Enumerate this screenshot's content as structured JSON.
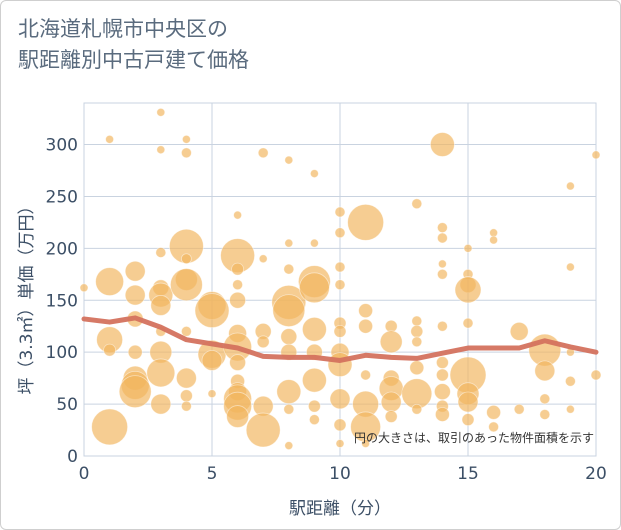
{
  "chart_data": {
    "type": "scatter",
    "title_line1": "北海道札幌市中央区の",
    "title_line2": "駅距離別中古戸建て価格",
    "xlabel": "駅距離（分）",
    "ylabel": "坪（3.3㎡）単価（万円）",
    "xlim": [
      0,
      20
    ],
    "ylim": [
      0,
      340
    ],
    "xticks": [
      0,
      5,
      10,
      15,
      20
    ],
    "yticks": [
      0,
      50,
      100,
      150,
      200,
      250,
      300
    ],
    "grid": true,
    "note": "円の大きさは、取引のあった物件面積を示す",
    "colors": {
      "bubble": "#f2b65e",
      "line": "#d4725e",
      "grid": "#c9d3e0"
    },
    "trend": {
      "x": [
        0,
        1,
        2,
        3,
        4,
        5,
        6,
        7,
        8,
        9,
        10,
        11,
        12,
        13,
        14,
        15,
        16,
        17,
        18,
        19,
        20
      ],
      "y": [
        132,
        129,
        133,
        124,
        112,
        108,
        104,
        96,
        95,
        95,
        92,
        97,
        95,
        94,
        99,
        104,
        104,
        104,
        111,
        105,
        100
      ]
    },
    "points": [
      {
        "x": 0,
        "y": 162,
        "s": 4
      },
      {
        "x": 1,
        "y": 305,
        "s": 4
      },
      {
        "x": 1,
        "y": 168,
        "s": 14
      },
      {
        "x": 1,
        "y": 112,
        "s": 13
      },
      {
        "x": 1,
        "y": 102,
        "s": 6
      },
      {
        "x": 1,
        "y": 28,
        "s": 18
      },
      {
        "x": 2,
        "y": 178,
        "s": 10
      },
      {
        "x": 2,
        "y": 155,
        "s": 10
      },
      {
        "x": 2,
        "y": 132,
        "s": 8
      },
      {
        "x": 2,
        "y": 100,
        "s": 7
      },
      {
        "x": 2,
        "y": 75,
        "s": 12
      },
      {
        "x": 2,
        "y": 68,
        "s": 14
      },
      {
        "x": 2,
        "y": 62,
        "s": 16
      },
      {
        "x": 3,
        "y": 331,
        "s": 4
      },
      {
        "x": 3,
        "y": 295,
        "s": 4
      },
      {
        "x": 3,
        "y": 196,
        "s": 5
      },
      {
        "x": 3,
        "y": 162,
        "s": 8
      },
      {
        "x": 3,
        "y": 155,
        "s": 12
      },
      {
        "x": 3,
        "y": 145,
        "s": 10
      },
      {
        "x": 3,
        "y": 120,
        "s": 5
      },
      {
        "x": 3,
        "y": 100,
        "s": 11
      },
      {
        "x": 3,
        "y": 80,
        "s": 14
      },
      {
        "x": 3,
        "y": 50,
        "s": 10
      },
      {
        "x": 4,
        "y": 305,
        "s": 4
      },
      {
        "x": 4,
        "y": 292,
        "s": 5
      },
      {
        "x": 4,
        "y": 202,
        "s": 17
      },
      {
        "x": 4,
        "y": 190,
        "s": 5
      },
      {
        "x": 4,
        "y": 170,
        "s": 11
      },
      {
        "x": 4,
        "y": 165,
        "s": 16
      },
      {
        "x": 4,
        "y": 120,
        "s": 5
      },
      {
        "x": 4,
        "y": 75,
        "s": 10
      },
      {
        "x": 4,
        "y": 58,
        "s": 6
      },
      {
        "x": 4,
        "y": 48,
        "s": 5
      },
      {
        "x": 5,
        "y": 145,
        "s": 14
      },
      {
        "x": 5,
        "y": 140,
        "s": 17
      },
      {
        "x": 5,
        "y": 98,
        "s": 14
      },
      {
        "x": 5,
        "y": 92,
        "s": 10
      },
      {
        "x": 5,
        "y": 60,
        "s": 4
      },
      {
        "x": 6,
        "y": 232,
        "s": 4
      },
      {
        "x": 6,
        "y": 193,
        "s": 17
      },
      {
        "x": 6,
        "y": 180,
        "s": 6
      },
      {
        "x": 6,
        "y": 165,
        "s": 5
      },
      {
        "x": 6,
        "y": 150,
        "s": 8
      },
      {
        "x": 6,
        "y": 118,
        "s": 9
      },
      {
        "x": 6,
        "y": 105,
        "s": 14
      },
      {
        "x": 6,
        "y": 90,
        "s": 8
      },
      {
        "x": 6,
        "y": 72,
        "s": 7
      },
      {
        "x": 6,
        "y": 62,
        "s": 9
      },
      {
        "x": 6,
        "y": 55,
        "s": 14
      },
      {
        "x": 6,
        "y": 48,
        "s": 14
      },
      {
        "x": 6,
        "y": 38,
        "s": 11
      },
      {
        "x": 7,
        "y": 292,
        "s": 5
      },
      {
        "x": 7,
        "y": 190,
        "s": 4
      },
      {
        "x": 7,
        "y": 120,
        "s": 8
      },
      {
        "x": 7,
        "y": 110,
        "s": 6
      },
      {
        "x": 7,
        "y": 48,
        "s": 10
      },
      {
        "x": 7,
        "y": 25,
        "s": 17
      },
      {
        "x": 8,
        "y": 285,
        "s": 4
      },
      {
        "x": 8,
        "y": 205,
        "s": 4
      },
      {
        "x": 8,
        "y": 180,
        "s": 5
      },
      {
        "x": 8,
        "y": 148,
        "s": 17
      },
      {
        "x": 8,
        "y": 140,
        "s": 16
      },
      {
        "x": 8,
        "y": 115,
        "s": 8
      },
      {
        "x": 8,
        "y": 100,
        "s": 8
      },
      {
        "x": 8,
        "y": 62,
        "s": 12
      },
      {
        "x": 8,
        "y": 45,
        "s": 5
      },
      {
        "x": 8,
        "y": 10,
        "s": 4
      },
      {
        "x": 9,
        "y": 272,
        "s": 4
      },
      {
        "x": 9,
        "y": 205,
        "s": 4
      },
      {
        "x": 9,
        "y": 168,
        "s": 16
      },
      {
        "x": 9,
        "y": 162,
        "s": 15
      },
      {
        "x": 9,
        "y": 122,
        "s": 12
      },
      {
        "x": 9,
        "y": 100,
        "s": 8
      },
      {
        "x": 9,
        "y": 73,
        "s": 12
      },
      {
        "x": 9,
        "y": 48,
        "s": 6
      },
      {
        "x": 9,
        "y": 35,
        "s": 5
      },
      {
        "x": 10,
        "y": 235,
        "s": 5
      },
      {
        "x": 10,
        "y": 215,
        "s": 5
      },
      {
        "x": 10,
        "y": 182,
        "s": 5
      },
      {
        "x": 10,
        "y": 165,
        "s": 5
      },
      {
        "x": 10,
        "y": 128,
        "s": 6
      },
      {
        "x": 10,
        "y": 120,
        "s": 6
      },
      {
        "x": 10,
        "y": 100,
        "s": 9
      },
      {
        "x": 10,
        "y": 88,
        "s": 12
      },
      {
        "x": 10,
        "y": 55,
        "s": 10
      },
      {
        "x": 10,
        "y": 30,
        "s": 6
      },
      {
        "x": 10,
        "y": 12,
        "s": 4
      },
      {
        "x": 11,
        "y": 225,
        "s": 18
      },
      {
        "x": 11,
        "y": 140,
        "s": 7
      },
      {
        "x": 11,
        "y": 125,
        "s": 7
      },
      {
        "x": 11,
        "y": 78,
        "s": 5
      },
      {
        "x": 11,
        "y": 50,
        "s": 13
      },
      {
        "x": 11,
        "y": 28,
        "s": 15
      },
      {
        "x": 11,
        "y": 12,
        "s": 4
      },
      {
        "x": 12,
        "y": 125,
        "s": 6
      },
      {
        "x": 12,
        "y": 110,
        "s": 11
      },
      {
        "x": 12,
        "y": 75,
        "s": 8
      },
      {
        "x": 12,
        "y": 65,
        "s": 12
      },
      {
        "x": 12,
        "y": 52,
        "s": 10
      },
      {
        "x": 12,
        "y": 38,
        "s": 6
      },
      {
        "x": 13,
        "y": 243,
        "s": 5
      },
      {
        "x": 13,
        "y": 130,
        "s": 5
      },
      {
        "x": 13,
        "y": 120,
        "s": 6
      },
      {
        "x": 13,
        "y": 110,
        "s": 5
      },
      {
        "x": 13,
        "y": 85,
        "s": 7
      },
      {
        "x": 13,
        "y": 60,
        "s": 15
      },
      {
        "x": 13,
        "y": 45,
        "s": 5
      },
      {
        "x": 14,
        "y": 300,
        "s": 12
      },
      {
        "x": 14,
        "y": 220,
        "s": 5
      },
      {
        "x": 14,
        "y": 210,
        "s": 5
      },
      {
        "x": 14,
        "y": 185,
        "s": 4
      },
      {
        "x": 14,
        "y": 175,
        "s": 5
      },
      {
        "x": 14,
        "y": 125,
        "s": 5
      },
      {
        "x": 14,
        "y": 90,
        "s": 6
      },
      {
        "x": 14,
        "y": 78,
        "s": 6
      },
      {
        "x": 14,
        "y": 62,
        "s": 8
      },
      {
        "x": 14,
        "y": 48,
        "s": 6
      },
      {
        "x": 14,
        "y": 40,
        "s": 7
      },
      {
        "x": 15,
        "y": 200,
        "s": 4
      },
      {
        "x": 15,
        "y": 175,
        "s": 5
      },
      {
        "x": 15,
        "y": 165,
        "s": 8
      },
      {
        "x": 15,
        "y": 160,
        "s": 13
      },
      {
        "x": 15,
        "y": 128,
        "s": 5
      },
      {
        "x": 15,
        "y": 78,
        "s": 18
      },
      {
        "x": 15,
        "y": 60,
        "s": 11
      },
      {
        "x": 15,
        "y": 52,
        "s": 10
      },
      {
        "x": 15,
        "y": 35,
        "s": 6
      },
      {
        "x": 16,
        "y": 215,
        "s": 4
      },
      {
        "x": 16,
        "y": 208,
        "s": 4
      },
      {
        "x": 16,
        "y": 42,
        "s": 7
      },
      {
        "x": 16,
        "y": 28,
        "s": 5
      },
      {
        "x": 17,
        "y": 120,
        "s": 9
      },
      {
        "x": 17,
        "y": 45,
        "s": 5
      },
      {
        "x": 18,
        "y": 102,
        "s": 16
      },
      {
        "x": 18,
        "y": 82,
        "s": 10
      },
      {
        "x": 18,
        "y": 55,
        "s": 5
      },
      {
        "x": 18,
        "y": 40,
        "s": 5
      },
      {
        "x": 19,
        "y": 260,
        "s": 4
      },
      {
        "x": 19,
        "y": 182,
        "s": 4
      },
      {
        "x": 19,
        "y": 100,
        "s": 4
      },
      {
        "x": 19,
        "y": 72,
        "s": 5
      },
      {
        "x": 19,
        "y": 45,
        "s": 4
      },
      {
        "x": 20,
        "y": 290,
        "s": 4
      },
      {
        "x": 20,
        "y": 78,
        "s": 5
      }
    ]
  }
}
